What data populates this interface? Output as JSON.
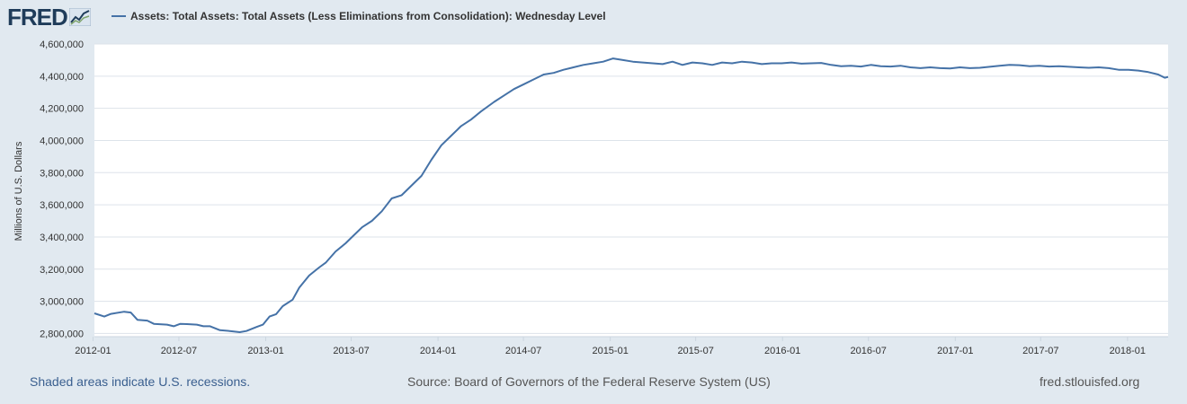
{
  "logo": {
    "text": "FRED"
  },
  "legend": {
    "label": "Assets: Total Assets: Total Assets (Less Eliminations from Consolidation): Wednesday Level"
  },
  "footer": {
    "recessions": "Shaded areas indicate U.S. recessions.",
    "source": "Source: Board of Governors of the Federal Reserve System (US)",
    "site": "fred.stlouisfed.org"
  },
  "colors": {
    "line": "#4572a7",
    "background": "#e1e9f0",
    "plot": "#ffffff",
    "grid": "#dde3ea",
    "brand": "#1f3c5a"
  },
  "chart_data": {
    "type": "line",
    "title": "",
    "xlabel": "",
    "ylabel": "Millions of U.S. Dollars",
    "ylim": [
      2780000,
      4600000
    ],
    "xlim": [
      "2012-01-04",
      "2018-03-28"
    ],
    "grid": true,
    "legend": "top-left",
    "y_ticks": [
      2800000,
      3000000,
      3200000,
      3400000,
      3600000,
      3800000,
      4000000,
      4200000,
      4400000,
      4600000
    ],
    "y_tick_labels": [
      "2,800,000",
      "3,000,000",
      "3,200,000",
      "3,400,000",
      "3,600,000",
      "3,800,000",
      "4,000,000",
      "4,200,000",
      "4,400,000",
      "4,600,000"
    ],
    "x_ticks": [
      "2012-01-01",
      "2012-07-01",
      "2013-01-01",
      "2013-07-01",
      "2014-01-01",
      "2014-07-01",
      "2015-01-01",
      "2015-07-01",
      "2016-01-01",
      "2016-07-01",
      "2017-01-01",
      "2017-07-01",
      "2018-01-01"
    ],
    "x_tick_labels": [
      "2012-01",
      "2012-07",
      "2013-01",
      "2013-07",
      "2014-01",
      "2014-07",
      "2015-01",
      "2015-07",
      "2016-01",
      "2016-07",
      "2017-01",
      "2017-07",
      "2018-01"
    ],
    "series": [
      {
        "name": "Assets: Total Assets: Total Assets (Less Eliminations from Consolidation): Wednesday Level",
        "points": [
          [
            "2012-01-04",
            2925000
          ],
          [
            "2012-01-25",
            2905000
          ],
          [
            "2012-02-08",
            2922000
          ],
          [
            "2012-03-07",
            2935000
          ],
          [
            "2012-03-21",
            2930000
          ],
          [
            "2012-04-04",
            2885000
          ],
          [
            "2012-04-25",
            2880000
          ],
          [
            "2012-05-09",
            2860000
          ],
          [
            "2012-06-06",
            2855000
          ],
          [
            "2012-06-20",
            2845000
          ],
          [
            "2012-07-04",
            2860000
          ],
          [
            "2012-07-18",
            2858000
          ],
          [
            "2012-08-08",
            2855000
          ],
          [
            "2012-08-22",
            2845000
          ],
          [
            "2012-09-05",
            2845000
          ],
          [
            "2012-09-26",
            2820000
          ],
          [
            "2012-10-17",
            2815000
          ],
          [
            "2012-11-07",
            2808000
          ],
          [
            "2012-11-21",
            2815000
          ],
          [
            "2012-12-12",
            2840000
          ],
          [
            "2012-12-26",
            2855000
          ],
          [
            "2013-01-09",
            2905000
          ],
          [
            "2013-01-23",
            2920000
          ],
          [
            "2013-02-06",
            2970000
          ],
          [
            "2013-02-27",
            3010000
          ],
          [
            "2013-03-13",
            3085000
          ],
          [
            "2013-04-03",
            3160000
          ],
          [
            "2013-04-24",
            3210000
          ],
          [
            "2013-05-08",
            3240000
          ],
          [
            "2013-05-29",
            3310000
          ],
          [
            "2013-06-19",
            3360000
          ],
          [
            "2013-07-03",
            3400000
          ],
          [
            "2013-07-24",
            3460000
          ],
          [
            "2013-08-14",
            3500000
          ],
          [
            "2013-09-04",
            3560000
          ],
          [
            "2013-09-25",
            3640000
          ],
          [
            "2013-10-16",
            3660000
          ],
          [
            "2013-11-06",
            3720000
          ],
          [
            "2013-11-27",
            3780000
          ],
          [
            "2013-12-18",
            3880000
          ],
          [
            "2014-01-08",
            3970000
          ],
          [
            "2014-01-29",
            4030000
          ],
          [
            "2014-02-19",
            4090000
          ],
          [
            "2014-03-12",
            4130000
          ],
          [
            "2014-04-02",
            4180000
          ],
          [
            "2014-04-30",
            4240000
          ],
          [
            "2014-05-21",
            4280000
          ],
          [
            "2014-06-11",
            4320000
          ],
          [
            "2014-07-02",
            4350000
          ],
          [
            "2014-07-23",
            4380000
          ],
          [
            "2014-08-13",
            4410000
          ],
          [
            "2014-09-03",
            4420000
          ],
          [
            "2014-09-24",
            4440000
          ],
          [
            "2014-10-15",
            4455000
          ],
          [
            "2014-11-05",
            4470000
          ],
          [
            "2014-11-26",
            4480000
          ],
          [
            "2014-12-17",
            4490000
          ],
          [
            "2015-01-07",
            4510000
          ],
          [
            "2015-01-28",
            4500000
          ],
          [
            "2015-02-18",
            4490000
          ],
          [
            "2015-03-11",
            4485000
          ],
          [
            "2015-04-01",
            4480000
          ],
          [
            "2015-04-22",
            4475000
          ],
          [
            "2015-05-13",
            4490000
          ],
          [
            "2015-06-03",
            4470000
          ],
          [
            "2015-06-24",
            4485000
          ],
          [
            "2015-07-15",
            4480000
          ],
          [
            "2015-08-05",
            4470000
          ],
          [
            "2015-08-26",
            4485000
          ],
          [
            "2015-09-16",
            4480000
          ],
          [
            "2015-10-07",
            4490000
          ],
          [
            "2015-10-28",
            4485000
          ],
          [
            "2015-11-18",
            4475000
          ],
          [
            "2015-12-09",
            4480000
          ],
          [
            "2015-12-30",
            4480000
          ],
          [
            "2016-01-20",
            4485000
          ],
          [
            "2016-02-10",
            4478000
          ],
          [
            "2016-03-02",
            4480000
          ],
          [
            "2016-03-23",
            4482000
          ],
          [
            "2016-04-13",
            4470000
          ],
          [
            "2016-05-04",
            4462000
          ],
          [
            "2016-05-25",
            4465000
          ],
          [
            "2016-06-15",
            4460000
          ],
          [
            "2016-07-06",
            4470000
          ],
          [
            "2016-07-27",
            4462000
          ],
          [
            "2016-08-17",
            4460000
          ],
          [
            "2016-09-07",
            4465000
          ],
          [
            "2016-09-28",
            4455000
          ],
          [
            "2016-10-19",
            4450000
          ],
          [
            "2016-11-09",
            4455000
          ],
          [
            "2016-11-30",
            4450000
          ],
          [
            "2016-12-21",
            4448000
          ],
          [
            "2017-01-11",
            4455000
          ],
          [
            "2017-02-01",
            4450000
          ],
          [
            "2017-02-22",
            4452000
          ],
          [
            "2017-03-15",
            4458000
          ],
          [
            "2017-04-05",
            4465000
          ],
          [
            "2017-04-26",
            4470000
          ],
          [
            "2017-05-17",
            4468000
          ],
          [
            "2017-06-07",
            4462000
          ],
          [
            "2017-06-28",
            4465000
          ],
          [
            "2017-07-19",
            4460000
          ],
          [
            "2017-08-09",
            4462000
          ],
          [
            "2017-08-30",
            4458000
          ],
          [
            "2017-09-20",
            4455000
          ],
          [
            "2017-10-11",
            4452000
          ],
          [
            "2017-11-01",
            4455000
          ],
          [
            "2017-11-22",
            4450000
          ],
          [
            "2017-12-13",
            4440000
          ],
          [
            "2018-01-03",
            4440000
          ],
          [
            "2018-01-24",
            4435000
          ],
          [
            "2018-02-14",
            4425000
          ],
          [
            "2018-03-07",
            4410000
          ],
          [
            "2018-03-21",
            4390000
          ],
          [
            "2018-03-28",
            4395000
          ]
        ]
      }
    ]
  }
}
